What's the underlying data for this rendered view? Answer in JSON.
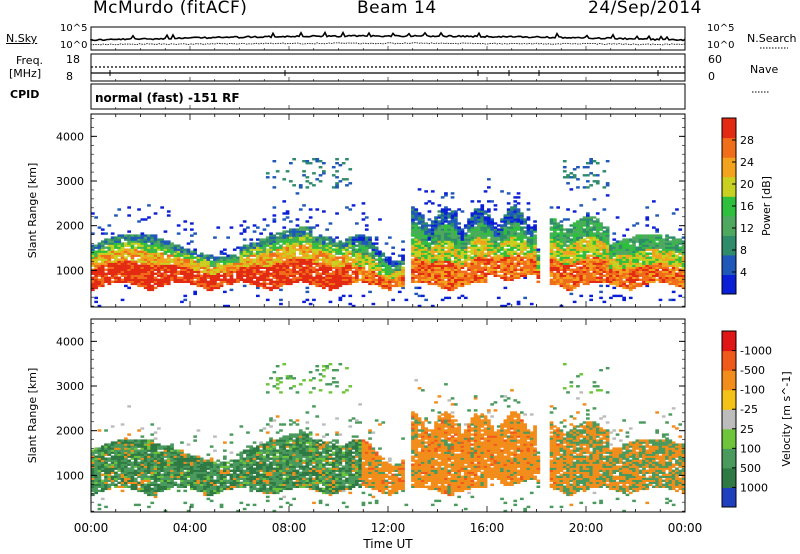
{
  "header": {
    "station": "McMurdo (fitACF)",
    "beam": "Beam 14",
    "date": "24/Sep/2014"
  },
  "aux_panels": {
    "nsky_label": "N.Sky",
    "nsky_ticks": [
      "10^5",
      "10^0"
    ],
    "nsearch_label": "N.Search",
    "nsearch_ticks": [
      "10^5",
      "10^0"
    ],
    "freq_label_1": "Freq.",
    "freq_label_2": "[MHz]",
    "freq_ticks": [
      "18",
      "8"
    ],
    "nave_label": "Nave",
    "nave_ticks": [
      "60",
      "0"
    ],
    "cpid_label": "CPID",
    "cpid_text": "normal (fast) -151 RF"
  },
  "chart_data": [
    {
      "type": "heatmap",
      "title": "",
      "xlabel": "",
      "ylabel": "Slant Range [km]",
      "y_ticks": [
        "1000",
        "2000",
        "3000",
        "4000"
      ],
      "ylim": [
        180,
        4500
      ],
      "xlim": [
        0,
        24
      ],
      "colorbar": {
        "label": "Power [dB]",
        "tick_labels": [
          "4",
          "8",
          "12",
          "16",
          "20",
          "24",
          "28"
        ],
        "range": [
          0,
          32
        ],
        "colors": [
          "#0a1fd6",
          "#1f58b8",
          "#2f8c6a",
          "#4fa860",
          "#2ec03c",
          "#c8d020",
          "#f2a21c",
          "#f06d1a",
          "#e32a12"
        ]
      },
      "features": [
        {
          "time_range": [
            0,
            10
          ],
          "range_km": [
            500,
            1800
          ],
          "dominant": "red/orange"
        },
        {
          "time_range": [
            10,
            18
          ],
          "range_km": [
            500,
            2200
          ],
          "dominant": "green/red"
        },
        {
          "time_range": [
            18,
            24
          ],
          "range_km": [
            500,
            1700
          ],
          "dominant": "orange/green"
        }
      ]
    },
    {
      "type": "heatmap",
      "title": "",
      "xlabel": "Time UT",
      "ylabel": "Slant Range [km]",
      "x_ticks": [
        "00:00",
        "04:00",
        "08:00",
        "12:00",
        "16:00",
        "20:00",
        "00:00"
      ],
      "y_ticks": [
        "1000",
        "2000",
        "3000",
        "4000"
      ],
      "ylim": [
        180,
        4500
      ],
      "xlim": [
        0,
        24
      ],
      "colorbar": {
        "label": "Velocity [m s^-1]",
        "tick_labels": [
          "1000",
          "500",
          "100",
          "25",
          "-25",
          "-100",
          "-500",
          "-1000"
        ],
        "colors": [
          "#1f3fbf",
          "#2f7a44",
          "#4a9a5e",
          "#6ec43a",
          "#bcbcbc",
          "#f2c218",
          "#f28c1a",
          "#ef5a1c",
          "#e01515"
        ]
      },
      "features": [
        {
          "time_range": [
            0,
            11
          ],
          "range_km": [
            500,
            1900
          ],
          "dominant": "green (positive)"
        },
        {
          "time_range": [
            11,
            19
          ],
          "range_km": [
            500,
            2400
          ],
          "dominant": "orange (negative)"
        },
        {
          "time_range": [
            19,
            24
          ],
          "range_km": [
            500,
            1900
          ],
          "dominant": "orange/green mix"
        }
      ]
    }
  ]
}
